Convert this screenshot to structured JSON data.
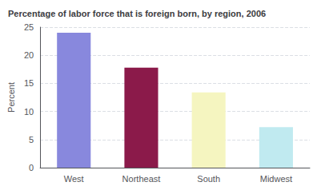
{
  "chart_data": {
    "type": "bar",
    "title": "Percentage of labor force that is foreign born, by region, 2006",
    "categories": [
      "West",
      "Northeast",
      "South",
      "Midwest"
    ],
    "values": [
      24.0,
      17.8,
      13.4,
      7.2
    ],
    "colors": [
      "#8888dd",
      "#8b1a4a",
      "#f5f5c0",
      "#c0eaf0"
    ],
    "ylabel": "Percent",
    "ylim": [
      0,
      25
    ],
    "yticks": [
      0,
      5,
      10,
      15,
      20,
      25
    ],
    "grid": true
  }
}
